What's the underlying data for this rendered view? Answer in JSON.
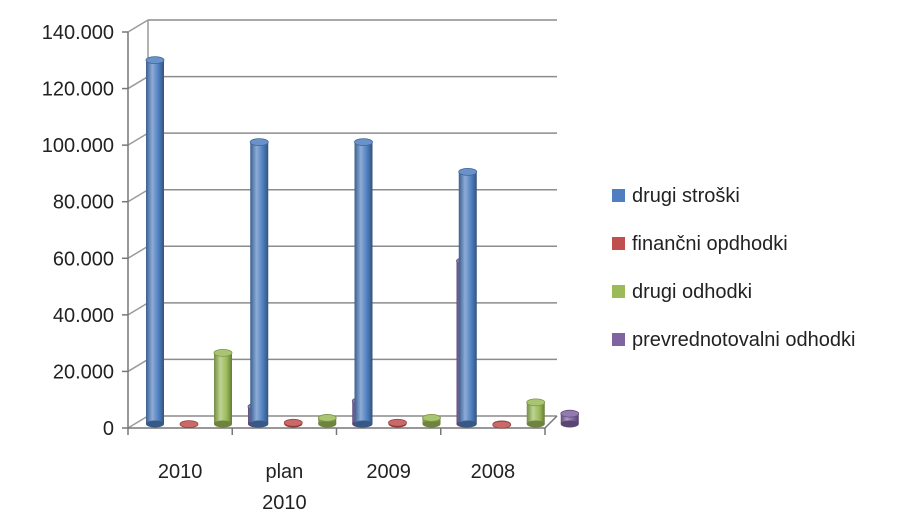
{
  "chart_data": {
    "type": "bar",
    "categories": [
      "2010",
      "plan 2010",
      "2009",
      "2008"
    ],
    "series": [
      {
        "name": "drugi stroški",
        "values": [
          129000,
          100000,
          100000,
          89500
        ]
      },
      {
        "name": "finančni opdhodki",
        "values": [
          300,
          800,
          800,
          100
        ]
      },
      {
        "name": "drugi odhodki",
        "values": [
          25500,
          2500,
          2500,
          8000
        ]
      },
      {
        "name": "prevrednotovalni odhodki",
        "values": [
          6500,
          8500,
          58000,
          4000
        ]
      }
    ],
    "yticks": [
      "0",
      "20.000",
      "40.000",
      "60.000",
      "80.000",
      "100.000",
      "120.000",
      "140.000"
    ],
    "ylim": [
      0,
      140000
    ],
    "grid": true,
    "legend_position": "right",
    "style": "3d-cylinder",
    "colors": [
      "#4F7FC0",
      "#C0504D",
      "#9BBB59",
      "#8064A2"
    ]
  }
}
